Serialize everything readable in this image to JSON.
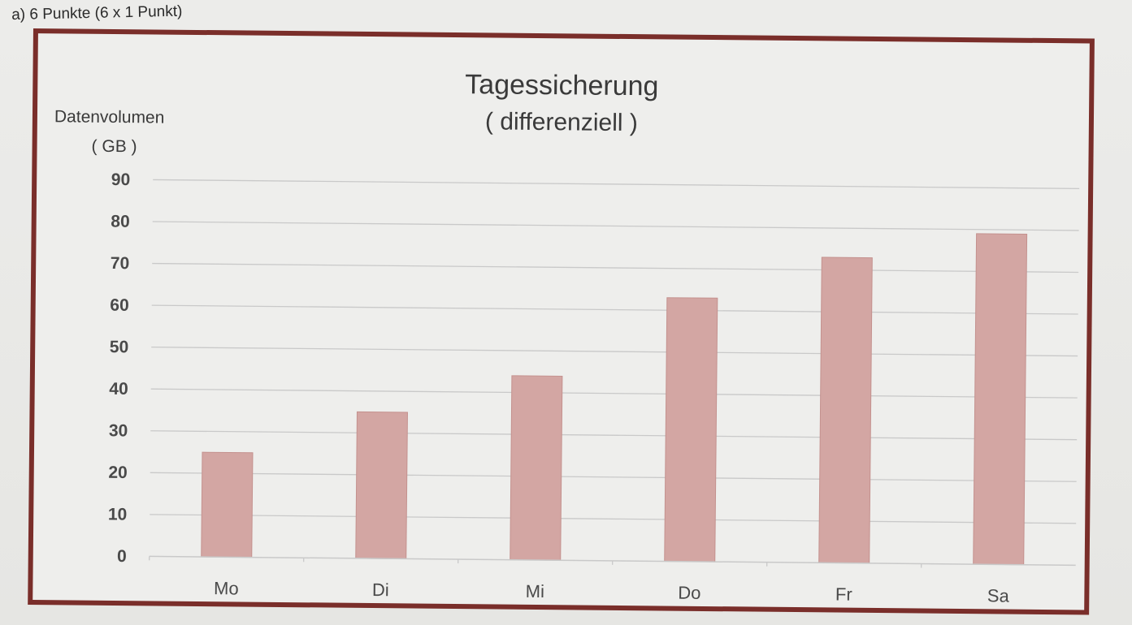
{
  "header": {
    "task_label": "a)  6 Punkte (6 x 1 Punkt)"
  },
  "colors": {
    "bar": "#d3a6a3",
    "bar_edge": "#c4918e",
    "frame": "#7a2e2a",
    "grid": "#c9c9c9",
    "text": "#3a3a3a"
  },
  "chart_data": {
    "type": "bar",
    "title": "Tagessicherung",
    "subtitle": "( differenziell )",
    "ylabel": "Datenvolumen",
    "ylabel_unit": "( GB )",
    "xlabel": "",
    "categories": [
      "Mo",
      "Di",
      "Mi",
      "Do",
      "Fr",
      "Sa"
    ],
    "values": [
      25,
      35,
      44,
      63,
      73,
      79
    ],
    "ylim": [
      0,
      90
    ],
    "yticks": [
      0,
      10,
      20,
      30,
      40,
      50,
      60,
      70,
      80,
      90
    ],
    "grid": true,
    "legend": "none"
  }
}
